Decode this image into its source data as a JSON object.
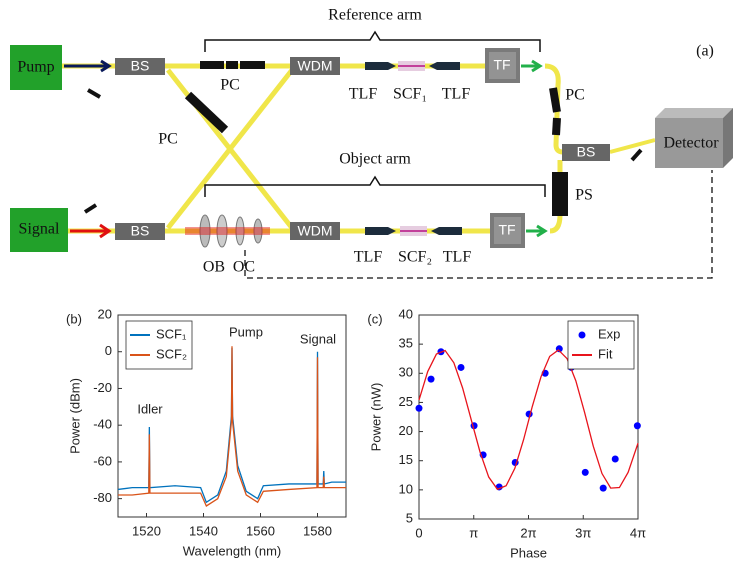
{
  "diagram": {
    "nodes": [
      "Reference arm",
      "Object arm",
      "(a)",
      "Pump",
      "Signal",
      "BS",
      "BS",
      "PC",
      "PC",
      "WDM",
      "WDM",
      "TLF",
      "SCF₁",
      "TLF",
      "TLF",
      "SCF₂",
      "TLF",
      "TF",
      "TF",
      "PC",
      "BS",
      "PS",
      "Detector",
      "OB",
      "OC"
    ]
  },
  "chart_data": [
    {
      "type": "line",
      "panel_label": "(b)",
      "ylabel": "Power (dBm)",
      "xlabel": "Wavelength (nm)",
      "annotations": [
        "Idler",
        "Pump",
        "Signal"
      ],
      "xlim": [
        1510,
        1590
      ],
      "xticks": [
        1520,
        1540,
        1560,
        1580
      ],
      "ylim": [
        -90,
        20
      ],
      "yticks": [
        -80,
        -60,
        -40,
        -20,
        0,
        20
      ],
      "legend": "upper left",
      "grid": false,
      "x": [
        1510,
        1515,
        1520.8,
        1521,
        1521.2,
        1530,
        1539,
        1541,
        1545,
        1548,
        1549.8,
        1550,
        1550.2,
        1552,
        1555,
        1559,
        1561,
        1570,
        1579.8,
        1580,
        1580.2,
        1582,
        1582.2,
        1582.4,
        1585,
        1590
      ],
      "series": [
        {
          "name": "SCF₁",
          "color": "#0072bd",
          "values": [
            -75,
            -74,
            -74,
            -41,
            -74,
            -73,
            -74,
            -82,
            -78,
            -65,
            -35,
            2,
            -35,
            -62,
            -76,
            -80,
            -73,
            -72,
            -72,
            0,
            -72,
            -72,
            -65,
            -72,
            -71,
            -71
          ]
        },
        {
          "name": "SCF₂",
          "color": "#d95319",
          "values": [
            -78,
            -78,
            -77,
            -45,
            -77,
            -77,
            -77,
            -84,
            -80,
            -68,
            -38,
            3,
            -38,
            -65,
            -78,
            -82,
            -76,
            -75,
            -74,
            -3,
            -74,
            -74,
            -68,
            -74,
            -74,
            -74
          ]
        }
      ]
    },
    {
      "type": "scatter",
      "panel_label": "(c)",
      "ylabel": "Power (nW)",
      "xlabel": "Phase",
      "xlim": [
        0,
        12.56637
      ],
      "xticks": [
        0,
        {
          "value": 3.14159,
          "label": "π"
        },
        {
          "value": 6.28319,
          "label": "2π"
        },
        {
          "value": 9.42478,
          "label": "3π"
        },
        {
          "value": 12.56637,
          "label": "4π"
        }
      ],
      "ylim": [
        5,
        40
      ],
      "yticks": [
        5,
        10,
        15,
        20,
        25,
        30,
        35,
        40
      ],
      "legend": "upper right",
      "grid": false,
      "series": [
        {
          "name": "Exp",
          "type": "scatter",
          "color": "#0000ff",
          "x": [
            0,
            0.69,
            1.26,
            2.41,
            3.16,
            3.68,
            4.6,
            5.52,
            6.32,
            7.24,
            8.05,
            8.74,
            9.54,
            10.57,
            11.26,
            12.53
          ],
          "values": [
            24,
            29,
            33.7,
            31,
            21,
            16,
            10.5,
            14.7,
            23,
            30,
            34.2,
            31,
            13,
            10.3,
            15.3,
            21
          ]
        },
        {
          "name": "Fit",
          "type": "line",
          "color": "#e8141c",
          "x": [
            0,
            0.5,
            1,
            1.5,
            2,
            2.5,
            3,
            3.5,
            4,
            4.5,
            5,
            5.5,
            6,
            6.5,
            7,
            7.5,
            8,
            8.5,
            9,
            9.5,
            10,
            10.5,
            11,
            11.5,
            12,
            12.56637
          ],
          "values": [
            25.4,
            30.3,
            33.3,
            33.9,
            31.8,
            27.5,
            22.0,
            16.5,
            12.2,
            10.1,
            10.7,
            13.7,
            18.6,
            24.3,
            29.4,
            32.9,
            34.0,
            32.5,
            28.7,
            23.3,
            17.5,
            12.8,
            10.3,
            10.4,
            13.0,
            18.0
          ]
        }
      ]
    }
  ]
}
